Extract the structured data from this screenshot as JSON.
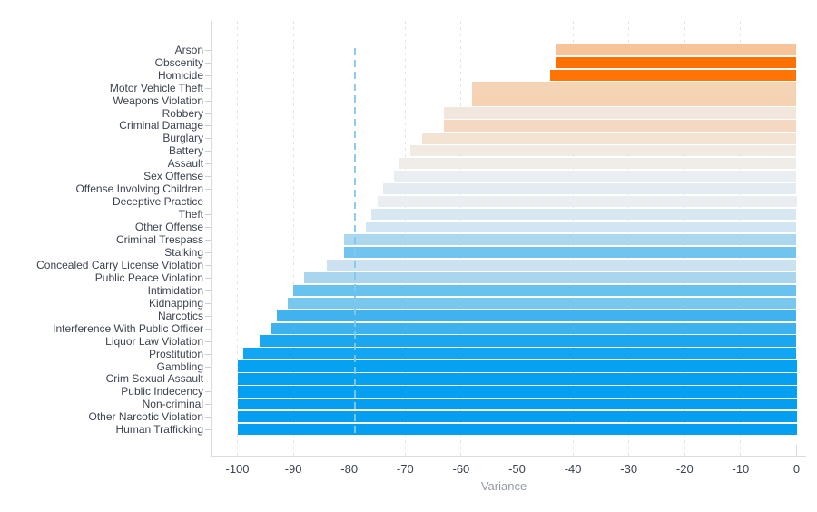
{
  "chart_data": {
    "type": "bar",
    "orientation": "horizontal",
    "title": "",
    "xlabel": "Variance",
    "ylabel": "",
    "xlim": [
      -100,
      0
    ],
    "grid": "vertical-dashed",
    "legend": "none",
    "x_ticks": [
      -100,
      -90,
      -80,
      -70,
      -60,
      -50,
      -40,
      -30,
      -20,
      -10,
      0
    ],
    "categories": [
      "Arson",
      "Obscenity",
      "Homicide",
      "Motor Vehicle Theft",
      "Weapons Violation",
      "Robbery",
      "Criminal Damage",
      "Burglary",
      "Battery",
      "Assault",
      "Sex Offense",
      "Offense Involving Children",
      "Deceptive Practice",
      "Theft",
      "Other Offense",
      "Criminal Trespass",
      "Stalking",
      "Concealed Carry License Violation",
      "Public Peace Violation",
      "Intimidation",
      "Kidnapping",
      "Narcotics",
      "Interference With Public Officer",
      "Liquor Law Violation",
      "Prostitution",
      "Gambling",
      "Crim Sexual Assault",
      "Public Indecency",
      "Non-criminal",
      "Other Narcotic Violation",
      "Human Trafficking"
    ],
    "values": [
      -43,
      -43,
      -44,
      -58,
      -58,
      -63,
      -63,
      -67,
      -69,
      -71,
      -72,
      -74,
      -75,
      -76,
      -77,
      -81,
      -81,
      -84,
      -88,
      -90,
      -91,
      -93,
      -94,
      -96,
      -99,
      -100,
      -100,
      -100,
      -100,
      -100,
      -100
    ],
    "bar_colors": [
      "#f7c398",
      "#ff7000",
      "#ff7405",
      "#f5d4b6",
      "#f5d2b2",
      "#f2e7dc",
      "#f4d8c1",
      "#f3e3d3",
      "#f1eae2",
      "#f0ece8",
      "#e9eef2",
      "#e3ecf3",
      "#eaeef2",
      "#d8e8f3",
      "#d2e5f3",
      "#abd7ef",
      "#70c4ed",
      "#cde2f1",
      "#aad5ee",
      "#68c2ee",
      "#78c7ee",
      "#40b3ef",
      "#3db2ef",
      "#19a7f0",
      "#12a5f1",
      "#07a1f1",
      "#06a0f1",
      "#05a0f1",
      "#049ff1",
      "#049ff1",
      "#049ff1"
    ],
    "reference_line": {
      "value": -79,
      "style": "dashed",
      "color": "#82c8ee"
    }
  },
  "colors": {
    "background": "#ffffff",
    "axis_line": "#d9dbde",
    "gridline": "#e2e4e7",
    "category_label": "#3b4351",
    "tick_label": "#3b4351",
    "axis_title": "#949aa7",
    "accent_orange": "#ff7000",
    "accent_blue": "#049ff1"
  }
}
